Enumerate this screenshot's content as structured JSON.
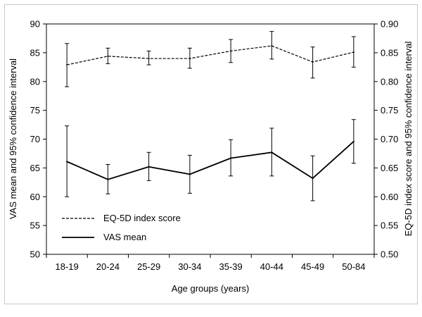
{
  "chart_data": {
    "type": "line",
    "xlabel": "Age groups (years)",
    "ylabel_left": "VAS mean and 95% confidence interval",
    "ylabel_right": "EQ-5D index score and 95% confidence interval",
    "categories": [
      "18-19",
      "20-24",
      "25-29",
      "30-34",
      "35-39",
      "40-44",
      "45-49",
      "50-84"
    ],
    "ylim_left": [
      50,
      90
    ],
    "ylim_right": [
      0.5,
      0.9
    ],
    "yticks_left": [
      "50",
      "55",
      "60",
      "65",
      "70",
      "75",
      "80",
      "85",
      "90"
    ],
    "yticks_right": [
      "0.50",
      "0.55",
      "0.60",
      "0.65",
      "0.70",
      "0.75",
      "0.80",
      "0.85",
      "0.90"
    ],
    "grid": false,
    "legend_position": "lower-left",
    "series": [
      {
        "name": "EQ-5D index score",
        "axis": "right",
        "style": "dashed",
        "values": [
          0.829,
          0.844,
          0.84,
          0.84,
          0.853,
          0.862,
          0.834,
          0.851
        ],
        "ci_low": [
          0.791,
          0.831,
          0.829,
          0.823,
          0.833,
          0.839,
          0.806,
          0.825
        ],
        "ci_high": [
          0.866,
          0.858,
          0.853,
          0.858,
          0.873,
          0.887,
          0.86,
          0.878
        ]
      },
      {
        "name": "VAS mean",
        "axis": "left",
        "style": "solid",
        "values": [
          66.1,
          63.0,
          65.2,
          63.9,
          66.7,
          67.7,
          63.2,
          69.6
        ],
        "ci_low": [
          60.0,
          60.5,
          62.8,
          60.6,
          63.6,
          63.6,
          59.3,
          65.8
        ],
        "ci_high": [
          72.3,
          65.6,
          67.7,
          67.2,
          69.9,
          71.9,
          67.1,
          73.4
        ]
      }
    ]
  }
}
